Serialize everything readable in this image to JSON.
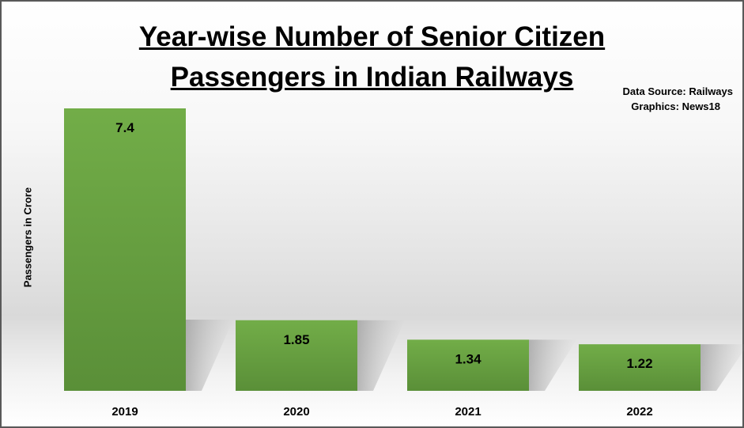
{
  "chart_data": {
    "type": "bar",
    "title_line1": "Year-wise Number of Senior Citizen",
    "title_line2": "Passengers in Indian Railways",
    "categories": [
      "2019",
      "2020",
      "2021",
      "2022"
    ],
    "values": [
      7.4,
      1.85,
      1.34,
      1.22
    ],
    "value_labels": [
      "7.4",
      "1.85",
      "1.34",
      "1.22"
    ],
    "xlabel": "",
    "ylabel": "Passengers in Crore",
    "ylim": [
      0,
      7.4
    ],
    "grid": false,
    "source": "Data Source: Railways",
    "credit": "Graphics: News18",
    "colors": {
      "bar_top": "#72ad48",
      "bar_bottom": "#5a8f38"
    }
  }
}
